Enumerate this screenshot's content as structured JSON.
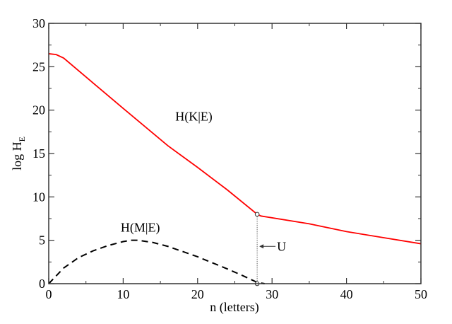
{
  "chart_data": {
    "type": "line",
    "title": "",
    "xlabel": "n (letters)",
    "ylabel_main": "log H",
    "ylabel_sub": "E",
    "xlim": [
      0,
      50
    ],
    "ylim": [
      0,
      30
    ],
    "xticks": [
      0,
      10,
      20,
      30,
      40,
      50
    ],
    "yticks": [
      0,
      5,
      10,
      15,
      20,
      25,
      30
    ],
    "grid": false,
    "series": [
      {
        "name": "H(K|E)",
        "color": "#ff0000",
        "style": "solid",
        "x": [
          0,
          1,
          2,
          6,
          10,
          16,
          20,
          24,
          28,
          28.5,
          35,
          40,
          45,
          50
        ],
        "y": [
          26.5,
          26.4,
          26.0,
          23.1,
          20.2,
          15.9,
          13.4,
          10.8,
          8.0,
          7.8,
          6.9,
          6.0,
          5.3,
          4.6
        ]
      },
      {
        "name": "H(M|E)",
        "color": "#000000",
        "style": "dashed",
        "x": [
          0,
          2,
          4,
          6,
          8,
          10,
          11,
          12,
          14,
          16,
          18,
          20,
          22,
          24,
          26,
          28,
          29
        ],
        "y": [
          0,
          1.8,
          3.0,
          3.8,
          4.4,
          4.85,
          5.0,
          5.0,
          4.75,
          4.3,
          3.7,
          3.1,
          2.4,
          1.7,
          0.95,
          0.15,
          0
        ]
      }
    ],
    "markers": [
      {
        "x": 28,
        "y": 8.0
      },
      {
        "x": 28,
        "y": 0
      }
    ],
    "annotations": [
      {
        "text": "H(K|E)",
        "x": 19.5,
        "y": 19.3
      },
      {
        "text": "H(M|E)",
        "x": 12.3,
        "y": 6.5
      },
      {
        "text": "U",
        "x": 28,
        "y": 4.3
      }
    ]
  }
}
